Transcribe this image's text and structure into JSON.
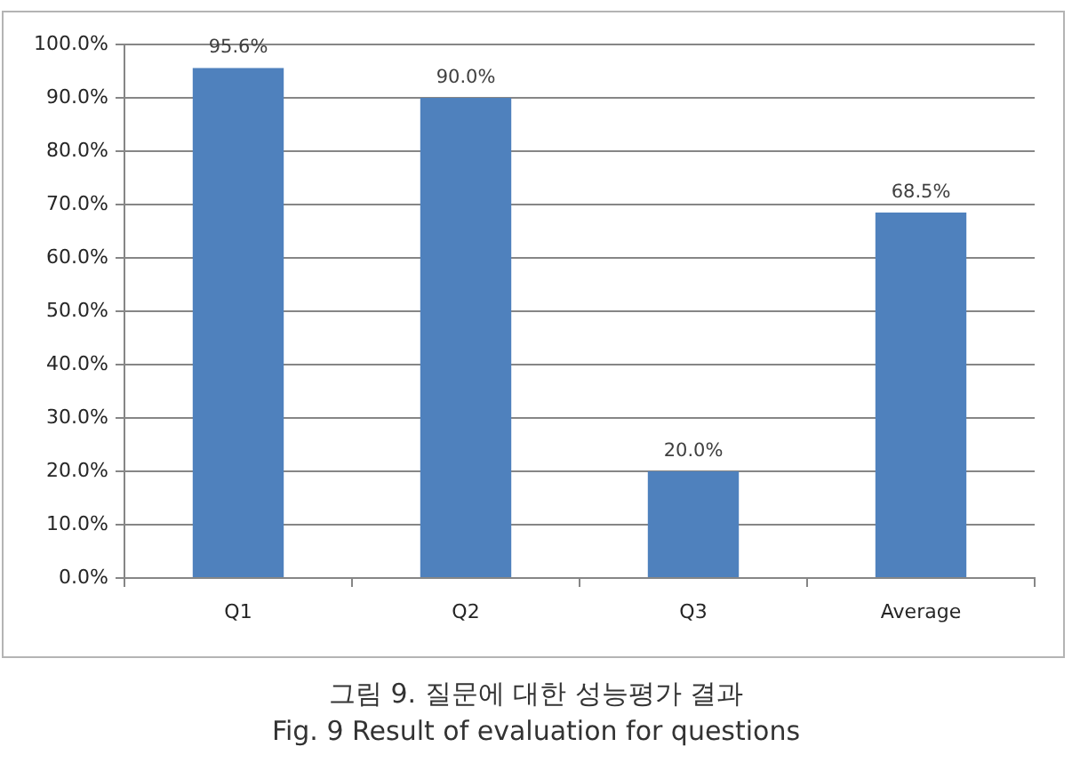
{
  "chart_data": {
    "type": "bar",
    "categories": [
      "Q1",
      "Q2",
      "Q3",
      "Average"
    ],
    "values": [
      95.6,
      90.0,
      20.0,
      68.5
    ],
    "color": "#4f81bd",
    "value_labels": [
      "95.6%",
      "90.0%",
      "20.0%",
      "68.5%"
    ],
    "ylim": [
      0,
      100
    ],
    "yticks": [
      {
        "value": 0,
        "label": "0.0%"
      },
      {
        "value": 10,
        "label": "10.0%"
      },
      {
        "value": 20,
        "label": "20.0%"
      },
      {
        "value": 30,
        "label": "30.0%"
      },
      {
        "value": 40,
        "label": "40.0%"
      },
      {
        "value": 50,
        "label": "50.0%"
      },
      {
        "value": 60,
        "label": "60.0%"
      },
      {
        "value": 70,
        "label": "70.0%"
      },
      {
        "value": 80,
        "label": "80.0%"
      },
      {
        "value": 90,
        "label": "90.0%"
      },
      {
        "value": 100,
        "label": "100.0%"
      }
    ],
    "grid": "y",
    "annotations": [
      "그림 9. 질문에 대한 성능평가 결과",
      "Fig. 9 Result of evaluation for questions"
    ]
  }
}
